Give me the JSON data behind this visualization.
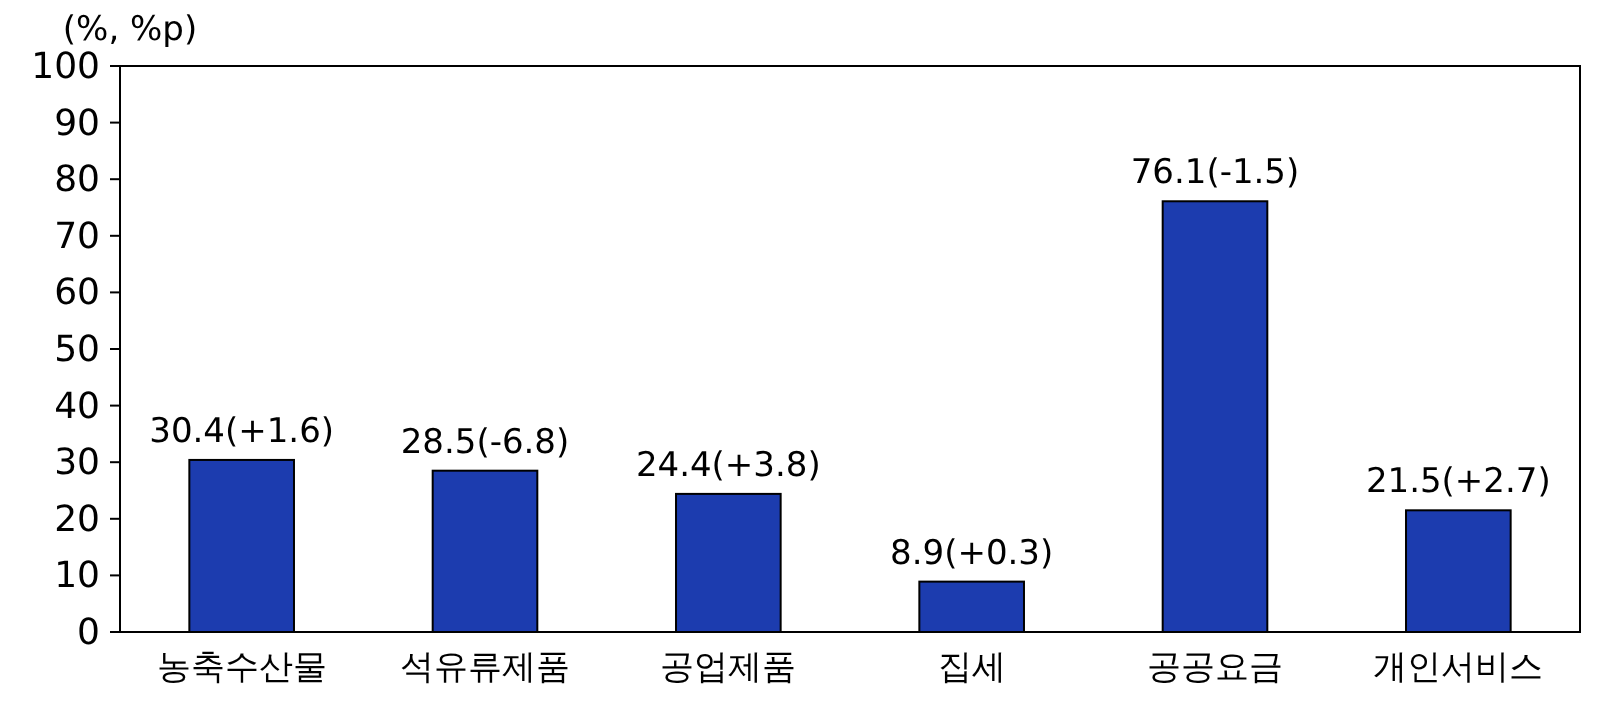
{
  "chart_data": {
    "type": "bar",
    "ylabel": "(%, %p)",
    "categories": [
      "농축수산물",
      "석유류제품",
      "공업제품",
      "집세",
      "공공요금",
      "개인서비스"
    ],
    "values": [
      30.4,
      28.5,
      24.4,
      8.9,
      76.1,
      21.5
    ],
    "value_labels": [
      "30.4(+1.6)",
      "28.5(-6.8)",
      "24.4(+3.8)",
      "8.9(+0.3)",
      "76.1(-1.5)",
      "21.5(+2.7)"
    ],
    "color": "#1c3caf",
    "ylim": [
      0,
      100
    ],
    "yticks": [
      0,
      10,
      20,
      30,
      40,
      50,
      60,
      70,
      80,
      90,
      100
    ]
  }
}
